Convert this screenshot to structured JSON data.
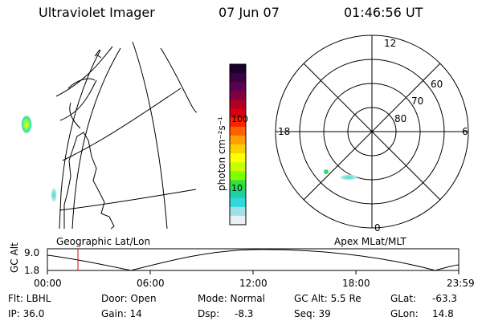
{
  "header": {
    "instrument": "Ultraviolet Imager",
    "date": "07 Jun 07",
    "time": "01:46:56 UT"
  },
  "colorbar": {
    "label": "photon cm⁻²s⁻¹",
    "ticks": [
      "100",
      "10"
    ],
    "colors": [
      "#1a0030",
      "#3a0040",
      "#5a0050",
      "#800040",
      "#b00020",
      "#d80010",
      "#ff2000",
      "#ff6000",
      "#ffa000",
      "#ffd000",
      "#ffff00",
      "#c8ff00",
      "#80ff00",
      "#30e040",
      "#20d0a0",
      "#30d8d8",
      "#a0e0e8",
      "#e8f0f4"
    ]
  },
  "left_panel": {
    "label": "Geographic Lat/Lon"
  },
  "right_panel": {
    "label": "Apex MLat/MLT",
    "mlt_labels": {
      "top": "12",
      "left": "18",
      "right": "6",
      "bottom": "0"
    },
    "lat_labels": [
      "60",
      "70",
      "80"
    ]
  },
  "orbit_plot": {
    "ylabel": "GC Alt",
    "ytick_top": "9.0",
    "ytick_bottom": "1.8",
    "xticks": [
      "00:00",
      "06:00",
      "12:00",
      "18:00",
      "23:59"
    ],
    "marker_time": "01:46:56"
  },
  "footer": {
    "flt": "Flt: LBHL",
    "ip": "IP: 36.0",
    "door": "Door: Open",
    "gain": "Gain: 14",
    "mode": "Mode: Normal",
    "dsp": "Dsp:",
    "dsp_val": "-8.3",
    "gcalt": "GC Alt: 5.5 Re",
    "seq": "Seq: 39",
    "glat": "GLat:",
    "glat_val": "-63.3",
    "glon": "GLon:",
    "glon_val": "14.8"
  }
}
